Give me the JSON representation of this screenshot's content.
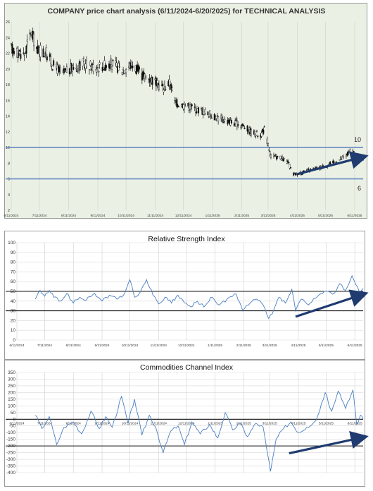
{
  "chart_data": [
    {
      "type": "candlestick",
      "title": "COMPANY price chart analysis (6/11/2024-6/20/2025) for TECHNICAL ANALYSIS",
      "ylim": [
        2,
        26
      ],
      "yticks": [
        2,
        4,
        6,
        8,
        10,
        12,
        14,
        16,
        18,
        20,
        22,
        24,
        26
      ],
      "xticks": [
        "6/11/2024",
        "7/11/2024",
        "8/11/2024",
        "9/11/2024",
        "10/11/2024",
        "11/11/2024",
        "12/11/2024",
        "1/11/2025",
        "2/11/2025",
        "3/11/2025",
        "4/11/2025",
        "5/11/2025",
        "6/11/2025"
      ],
      "levels": [
        {
          "value": 10,
          "label": "10"
        },
        {
          "value": 6,
          "label": "6"
        }
      ],
      "trend_arrow": {
        "from": [
          "4/11/2025",
          6.6
        ],
        "to": [
          "6/20/2025",
          8.8
        ]
      },
      "price_path": [
        [
          "6/11/2024",
          22.6
        ],
        [
          "6/25/2024",
          21.8
        ],
        [
          "7/2/2024",
          24.7
        ],
        [
          "7/9/2024",
          22.4
        ],
        [
          "7/18/2024",
          22.0
        ],
        [
          "7/26/2024",
          20.4
        ],
        [
          "8/5/2024",
          19.4
        ],
        [
          "8/15/2024",
          20.1
        ],
        [
          "8/26/2024",
          20.6
        ],
        [
          "9/10/2024",
          20.2
        ],
        [
          "9/25/2024",
          20.7
        ],
        [
          "10/7/2024",
          19.9
        ],
        [
          "10/18/2024",
          20.6
        ],
        [
          "10/28/2024",
          19.2
        ],
        [
          "11/8/2024",
          18.6
        ],
        [
          "11/20/2024",
          17.6
        ],
        [
          "11/27/2024",
          18.3
        ],
        [
          "12/2/2024",
          15.7
        ],
        [
          "12/15/2024",
          15.3
        ],
        [
          "12/30/2024",
          14.7
        ],
        [
          "1/14/2025",
          13.9
        ],
        [
          "1/28/2025",
          13.3
        ],
        [
          "2/11/2025",
          12.9
        ],
        [
          "2/22/2025",
          11.9
        ],
        [
          "3/3/2025",
          11.6
        ],
        [
          "3/7/2025",
          12.3
        ],
        [
          "3/11/2025",
          10.3
        ],
        [
          "3/14/2025",
          8.9
        ],
        [
          "3/24/2025",
          8.7
        ],
        [
          "4/1/2025",
          8.1
        ],
        [
          "4/7/2025",
          6.6
        ],
        [
          "4/17/2025",
          6.8
        ],
        [
          "4/28/2025",
          7.2
        ],
        [
          "5/10/2025",
          7.6
        ],
        [
          "5/22/2025",
          8.2
        ],
        [
          "6/2/2025",
          8.9
        ],
        [
          "6/6/2025",
          9.6
        ],
        [
          "6/14/2025",
          8.8
        ],
        [
          "6/20/2025",
          8.5
        ]
      ]
    },
    {
      "type": "line",
      "title": "Relative Strength Index",
      "ylim": [
        0,
        100
      ],
      "yticks": [
        0,
        10,
        20,
        30,
        40,
        50,
        60,
        70,
        80,
        90,
        100
      ],
      "xticks": [
        "6/11/2024",
        "7/11/2024",
        "8/11/2024",
        "9/11/2024",
        "10/11/2024",
        "11/11/2024",
        "12/11/2024",
        "1/11/2025",
        "2/11/2025",
        "3/11/2025",
        "4/11/2025",
        "5/11/2025",
        "6/11/2025"
      ],
      "reference_lines": [
        50,
        30
      ],
      "trend_arrow": {
        "from": [
          "4/8/2025",
          24
        ],
        "to": [
          "6/20/2025",
          47
        ]
      },
      "series": [
        {
          "points": [
            [
              "7/1/2024",
              42
            ],
            [
              "7/6/2024",
              51
            ],
            [
              "7/11/2024",
              45
            ],
            [
              "7/16/2024",
              51
            ],
            [
              "7/21/2024",
              44
            ],
            [
              "7/28/2024",
              40
            ],
            [
              "8/4/2024",
              48
            ],
            [
              "8/11/2024",
              38
            ],
            [
              "8/18/2024",
              44
            ],
            [
              "8/25/2024",
              41
            ],
            [
              "9/3/2024",
              48
            ],
            [
              "9/11/2024",
              40
            ],
            [
              "9/19/2024",
              46
            ],
            [
              "9/27/2024",
              42
            ],
            [
              "10/4/2024",
              46
            ],
            [
              "10/11/2024",
              62
            ],
            [
              "10/16/2024",
              44
            ],
            [
              "10/22/2024",
              49
            ],
            [
              "10/29/2024",
              62
            ],
            [
              "11/5/2024",
              46
            ],
            [
              "11/11/2024",
              37
            ],
            [
              "11/18/2024",
              44
            ],
            [
              "11/25/2024",
              38
            ],
            [
              "12/2/2024",
              46
            ],
            [
              "12/9/2024",
              38
            ],
            [
              "12/16/2024",
              34
            ],
            [
              "12/23/2024",
              40
            ],
            [
              "12/30/2024",
              34
            ],
            [
              "1/8/2025",
              44
            ],
            [
              "1/16/2025",
              36
            ],
            [
              "1/24/2025",
              42
            ],
            [
              "2/3/2025",
              47
            ],
            [
              "2/10/2025",
              30
            ],
            [
              "2/18/2025",
              38
            ],
            [
              "2/25/2025",
              42
            ],
            [
              "3/4/2025",
              36
            ],
            [
              "3/10/2025",
              22
            ],
            [
              "3/14/2025",
              27
            ],
            [
              "3/21/2025",
              44
            ],
            [
              "3/28/2025",
              38
            ],
            [
              "4/4/2025",
              52
            ],
            [
              "4/8/2025",
              30
            ],
            [
              "4/14/2025",
              42
            ],
            [
              "4/22/2025",
              36
            ],
            [
              "5/1/2025",
              44
            ],
            [
              "5/9/2025",
              50
            ],
            [
              "5/18/2025",
              47
            ],
            [
              "5/26/2025",
              58
            ],
            [
              "6/1/2025",
              51
            ],
            [
              "6/8/2025",
              66
            ],
            [
              "6/12/2025",
              57
            ],
            [
              "6/16/2025",
              49
            ],
            [
              "6/20/2025",
              53
            ]
          ]
        }
      ]
    },
    {
      "type": "line",
      "title": "Commodities Channel Index",
      "ylim": [
        -400,
        350
      ],
      "yticks": [
        -400,
        -350,
        -300,
        -250,
        -200,
        -150,
        -100,
        -50,
        0,
        50,
        100,
        150,
        200,
        250,
        300,
        350
      ],
      "xticks": [
        "6/11/2024",
        "7/11/2024",
        "8/11/2024",
        "9/11/2024",
        "10/11/2024",
        "11/11/2024",
        "12/11/2024",
        "1/11/2025",
        "2/11/2025",
        "3/11/2025",
        "4/11/2025",
        "5/11/2025",
        "6/11/2025"
      ],
      "reference_lines": [
        0,
        -200
      ],
      "trend_arrow": {
        "from": [
          "4/1/2025",
          -255
        ],
        "to": [
          "6/20/2025",
          -135
        ]
      },
      "series": [
        {
          "points": [
            [
              "7/1/2024",
              30
            ],
            [
              "7/8/2024",
              -70
            ],
            [
              "7/16/2024",
              20
            ],
            [
              "7/24/2024",
              -190
            ],
            [
              "8/1/2024",
              -60
            ],
            [
              "8/11/2024",
              -20
            ],
            [
              "8/20/2024",
              -110
            ],
            [
              "8/30/2024",
              60
            ],
            [
              "9/8/2024",
              -70
            ],
            [
              "9/15/2024",
              20
            ],
            [
              "9/22/2024",
              -60
            ],
            [
              "10/2/2024",
              170
            ],
            [
              "10/9/2024",
              -30
            ],
            [
              "10/16/2024",
              150
            ],
            [
              "10/24/2024",
              -120
            ],
            [
              "11/1/2024",
              30
            ],
            [
              "11/8/2024",
              -60
            ],
            [
              "11/16/2024",
              -250
            ],
            [
              "11/24/2024",
              -90
            ],
            [
              "12/2/2024",
              -50
            ],
            [
              "12/9/2024",
              -190
            ],
            [
              "12/17/2024",
              -20
            ],
            [
              "12/26/2024",
              -110
            ],
            [
              "1/5/2025",
              -40
            ],
            [
              "1/14/2025",
              -140
            ],
            [
              "1/22/2025",
              50
            ],
            [
              "1/30/2025",
              -80
            ],
            [
              "2/7/2025",
              -30
            ],
            [
              "2/15/2025",
              -130
            ],
            [
              "2/24/2025",
              -30
            ],
            [
              "3/4/2025",
              -60
            ],
            [
              "3/8/2025",
              -230
            ],
            [
              "3/12/2025",
              -390
            ],
            [
              "3/18/2025",
              -150
            ],
            [
              "3/26/2025",
              -70
            ],
            [
              "4/3/2025",
              -20
            ],
            [
              "4/11/2025",
              -100
            ],
            [
              "4/20/2025",
              -60
            ],
            [
              "4/30/2025",
              -10
            ],
            [
              "5/10/2025",
              200
            ],
            [
              "5/17/2025",
              60
            ],
            [
              "5/24/2025",
              210
            ],
            [
              "6/1/2025",
              80
            ],
            [
              "6/9/2025",
              220
            ],
            [
              "6/13/2025",
              -40
            ],
            [
              "6/17/2025",
              30
            ],
            [
              "6/20/2025",
              0
            ]
          ]
        }
      ]
    }
  ]
}
